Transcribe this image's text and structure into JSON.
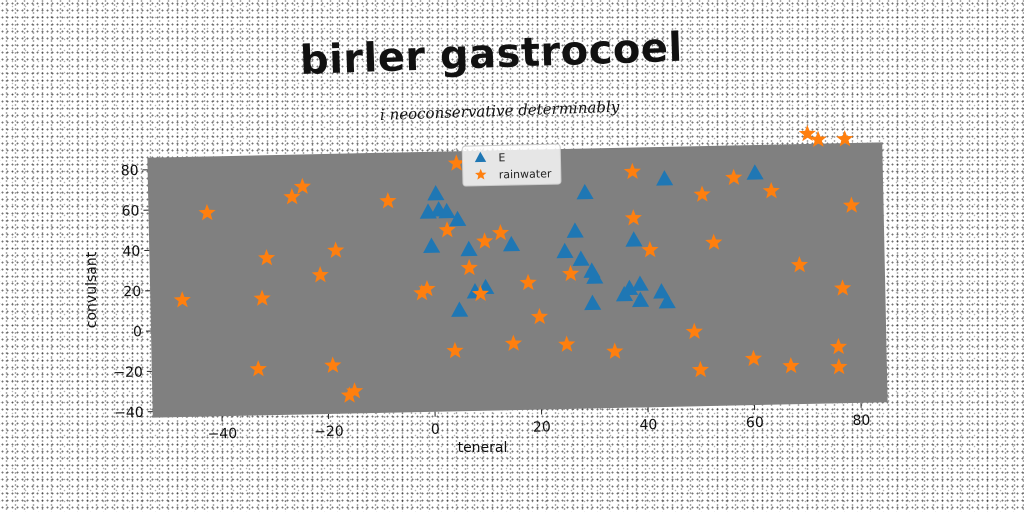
{
  "chart_data": {
    "type": "scatter",
    "title": "birler gastrocoel",
    "subtitle": "i neoconservative determinably",
    "xlabel": "teneral",
    "ylabel": "convulsant",
    "xlim": [
      -53,
      85
    ],
    "ylim": [
      -43,
      86
    ],
    "xticks": [
      -40,
      -20,
      0,
      20,
      40,
      60,
      80
    ],
    "yticks": [
      -40,
      -20,
      0,
      20,
      40,
      60,
      80
    ],
    "xtick_labels": [
      "−40",
      "−20",
      "0",
      "20",
      "40",
      "60",
      "80"
    ],
    "ytick_labels": [
      "−40",
      "−20",
      "0",
      "20",
      "40",
      "60",
      "80"
    ],
    "grid": false,
    "legend_position": "top-center",
    "colors": {
      "plot_bg": "#808080",
      "series_triangle": "#1f77b4",
      "series_star": "#ff7f0e"
    },
    "series": [
      {
        "name": "E",
        "marker": "triangle",
        "color": "#1f77b4",
        "points": [
          [
            1,
            65
          ],
          [
            -0.5,
            56
          ],
          [
            1.5,
            57
          ],
          [
            3,
            56
          ],
          [
            5,
            52
          ],
          [
            0,
            39
          ],
          [
            7,
            37
          ],
          [
            8,
            16
          ],
          [
            10,
            18
          ],
          [
            15,
            39
          ],
          [
            5,
            7
          ],
          [
            25,
            35
          ],
          [
            27,
            45
          ],
          [
            28,
            31
          ],
          [
            29,
            64
          ],
          [
            30,
            25
          ],
          [
            30.5,
            22
          ],
          [
            30,
            9
          ],
          [
            36,
            13
          ],
          [
            37,
            16
          ],
          [
            38,
            40
          ],
          [
            39,
            18
          ],
          [
            39,
            10
          ],
          [
            44,
            70
          ],
          [
            43,
            14
          ],
          [
            44,
            9
          ],
          [
            61,
            72
          ]
        ]
      },
      {
        "name": "rainwater",
        "marker": "star",
        "color": "#ff7f0e",
        "points": [
          [
            -47,
            15
          ],
          [
            -42,
            58
          ],
          [
            -32,
            15
          ],
          [
            -31,
            35
          ],
          [
            -33,
            -20
          ],
          [
            -26,
            65
          ],
          [
            -24,
            70
          ],
          [
            -21,
            26
          ],
          [
            -18,
            38
          ],
          [
            -19,
            -19
          ],
          [
            -16,
            -34
          ],
          [
            -15,
            -32
          ],
          [
            -8,
            62
          ],
          [
            -2,
            16
          ],
          [
            -1,
            18
          ],
          [
            3,
            47
          ],
          [
            4,
            -13
          ],
          [
            5,
            80
          ],
          [
            7,
            28
          ],
          [
            9,
            15
          ],
          [
            10,
            41
          ],
          [
            13,
            45
          ],
          [
            15,
            -10
          ],
          [
            18,
            20
          ],
          [
            20,
            3
          ],
          [
            25,
            -11
          ],
          [
            26,
            24
          ],
          [
            34,
            -15
          ],
          [
            38,
            74
          ],
          [
            38,
            51
          ],
          [
            41,
            35
          ],
          [
            49,
            -6
          ],
          [
            50,
            -25
          ],
          [
            51,
            62
          ],
          [
            53,
            38
          ],
          [
            57,
            70
          ],
          [
            60,
            -20
          ],
          [
            64,
            63
          ],
          [
            67,
            -24
          ],
          [
            69,
            26
          ],
          [
            71,
            91
          ],
          [
            73,
            88
          ],
          [
            76,
            -25
          ],
          [
            76,
            -15
          ],
          [
            77,
            14
          ],
          [
            78,
            88
          ],
          [
            79,
            55
          ]
        ]
      }
    ]
  }
}
